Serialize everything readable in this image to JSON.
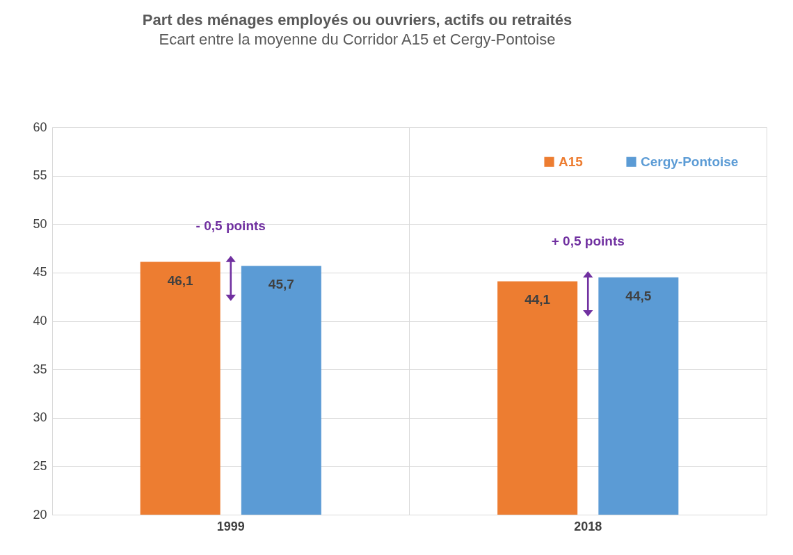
{
  "chart_data": {
    "type": "bar",
    "title": "Part des ménages employés ou ouvriers, actifs ou retraités",
    "subtitle": "Ecart entre la moyenne du Corridor A15 et Cergy-Pontoise",
    "categories": [
      "1999",
      "2018"
    ],
    "series": [
      {
        "name": "A15",
        "color": "#ed7d31",
        "values": [
          46.1,
          44.1
        ],
        "value_labels": [
          "46,1",
          "44,1"
        ]
      },
      {
        "name": "Cergy-Pontoise",
        "color": "#5b9bd5",
        "values": [
          45.7,
          44.5
        ],
        "value_labels": [
          "45,7",
          "44,5"
        ]
      }
    ],
    "annotations": [
      "- 0,5 points",
      "+ 0,5 points"
    ],
    "ylim": [
      20,
      60
    ],
    "yticks": [
      20,
      25,
      30,
      35,
      40,
      45,
      50,
      55,
      60
    ],
    "grid": true,
    "legend": "top right"
  }
}
